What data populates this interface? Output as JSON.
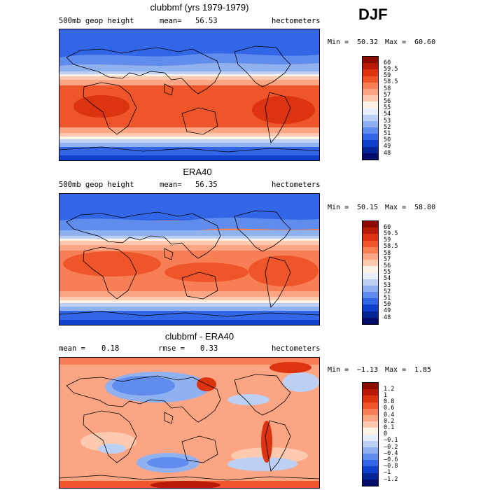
{
  "header": {
    "season": "DJF"
  },
  "panels": [
    {
      "title": "clubbmf (yrs 1979-1979)",
      "left_label": "500mb geop height",
      "mean_label": "mean=",
      "mean_value": "56.53",
      "units": "hectometers",
      "min_label": "Min =",
      "min_value": "50.32",
      "max_label": "Max =",
      "max_value": "60.60",
      "levels": [
        "60",
        "59.5",
        "59",
        "58.5",
        "58",
        "57",
        "56",
        "55",
        "54",
        "53",
        "52",
        "51",
        "50",
        "49",
        "48"
      ]
    },
    {
      "title": "ERA40",
      "left_label": "500mb geop height",
      "mean_label": "mean=",
      "mean_value": "56.35",
      "units": "hectometers",
      "min_label": "Min =",
      "min_value": "50.15",
      "max_label": "Max =",
      "max_value": "58.80",
      "levels": [
        "60",
        "59.5",
        "59",
        "58.5",
        "58",
        "57",
        "56",
        "55",
        "54",
        "53",
        "52",
        "51",
        "50",
        "49",
        "48"
      ]
    },
    {
      "title": "clubbmf - ERA40",
      "mean_label": "mean =",
      "mean_value": "0.18",
      "rmse_label": "rmse =",
      "rmse_value": "0.33",
      "units": "hectometers",
      "min_label": "Min =",
      "min_value": "−1.13",
      "max_label": "Max =",
      "max_value": "1.85",
      "levels": [
        "1.2",
        "1",
        "0.8",
        "0.6",
        "0.4",
        "0.2",
        "0.1",
        "0",
        "−0.1",
        "−0.2",
        "−0.4",
        "−0.6",
        "−0.8",
        "−1",
        "−1.2"
      ]
    }
  ],
  "palette": [
    "#8c0a00",
    "#b71a06",
    "#dc3410",
    "#ee5528",
    "#f87e55",
    "#fba584",
    "#fdcab0",
    "#fef2e6",
    "#e8eefb",
    "#bcd0f6",
    "#8fb1f0",
    "#5f8ced",
    "#3366e6",
    "#1040cc",
    "#062696",
    "#020c6a"
  ],
  "coast_color": "#000000"
}
